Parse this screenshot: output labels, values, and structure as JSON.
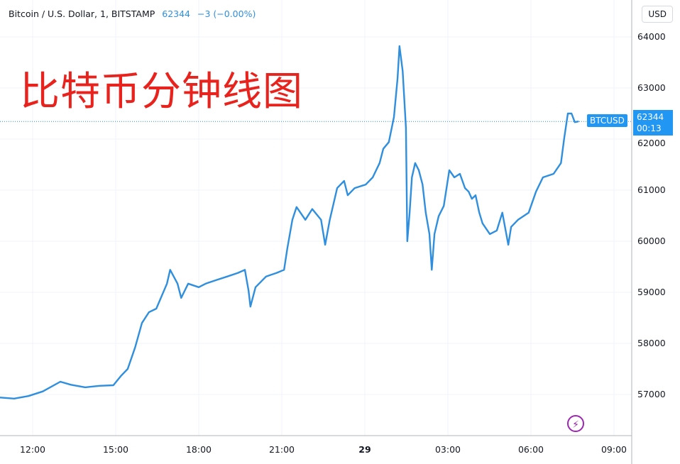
{
  "header": {
    "symbol_desc": "Bitcoin / U.S. Dollar, 1, BITSTAMP",
    "last": "62344",
    "change": "−3 (−0.00%)",
    "currency_button": "USD"
  },
  "overlay_title": "比特币分钟线图",
  "price_label": {
    "symbol": "BTCUSD",
    "price": "62344",
    "countdown": "00:13"
  },
  "icons": {
    "lightning": "lightning-icon"
  },
  "colors": {
    "line": "#2f8fde",
    "tag": "#2196f3",
    "title": "#e8231d",
    "grid": "#f0f3fa"
  },
  "chart_data": {
    "type": "line",
    "title": "",
    "xlabel": "",
    "ylabel": "",
    "x_tick_labels": [
      "12:00",
      "15:00",
      "18:00",
      "21:00",
      "29",
      "03:00",
      "06:00",
      "09:00"
    ],
    "y_tick_labels": [
      "57000",
      "58000",
      "59000",
      "60000",
      "61000",
      "62000",
      "63000",
      "64000"
    ],
    "ylim": [
      56500,
      64500
    ],
    "xlim": [
      "28 10:49",
      "29 09:30"
    ],
    "grid": true,
    "last_price_line": 62344,
    "series": [
      {
        "x": [
          "28 10:49",
          "28 11:20",
          "28 11:51",
          "28 12:22",
          "28 13:00",
          "28 13:23",
          "28 13:54",
          "28 14:25",
          "28 14:55",
          "28 15:11",
          "28 15:26",
          "28 15:42",
          "28 15:57",
          "28 16:12",
          "28 16:28",
          "28 16:51",
          "28 16:58",
          "28 17:14",
          "28 17:22",
          "28 17:37",
          "28 18:00",
          "28 18:15",
          "28 18:38",
          "28 19:02",
          "28 19:25",
          "28 19:40",
          "28 19:48",
          "28 19:52",
          "28 20:03",
          "28 20:26",
          "28 20:49",
          "28 21:05",
          "28 21:12",
          "28 21:23",
          "28 21:32",
          "28 21:51",
          "28 22:06",
          "28 22:25",
          "28 22:34",
          "28 22:44",
          "28 23:00",
          "28 23:15",
          "28 23:23",
          "28 23:38",
          "29 00:02",
          "29 00:17",
          "29 00:32",
          "29 00:40",
          "29 00:52",
          "29 01:03",
          "29 01:11",
          "29 01:15",
          "29 01:22",
          "29 01:29",
          "29 01:32",
          "29 01:37",
          "29 01:42",
          "29 01:49",
          "29 01:57",
          "29 02:05",
          "29 02:12",
          "29 02:20",
          "29 02:25",
          "29 02:31",
          "29 02:40",
          "29 02:51",
          "29 03:03",
          "29 03:14",
          "29 03:26",
          "29 03:37",
          "29 03:45",
          "29 03:52",
          "29 04:00",
          "29 04:08",
          "29 04:15",
          "29 04:31",
          "29 04:46",
          "29 04:58",
          "29 05:11",
          "29 05:17",
          "29 05:32",
          "29 05:55",
          "29 06:11",
          "29 06:26",
          "29 06:49",
          "29 07:05",
          "29 07:12",
          "29 07:20",
          "29 07:28",
          "29 07:35",
          "29 07:43"
        ],
        "y": [
          56940,
          56920,
          56970,
          57060,
          57250,
          57190,
          57140,
          57170,
          57180,
          57360,
          57500,
          57920,
          58400,
          58610,
          58680,
          59170,
          59440,
          59170,
          58890,
          59170,
          59100,
          59170,
          59240,
          59310,
          59380,
          59440,
          59030,
          58720,
          59100,
          59310,
          59380,
          59440,
          59860,
          60420,
          60670,
          60420,
          60630,
          60420,
          59930,
          60420,
          61040,
          61180,
          60900,
          61040,
          61110,
          61250,
          61530,
          61810,
          61940,
          62430,
          63190,
          63820,
          63330,
          62220,
          60000,
          60560,
          61250,
          61530,
          61390,
          61110,
          60560,
          60140,
          59440,
          60140,
          60490,
          60690,
          61390,
          61250,
          61320,
          61040,
          60970,
          60830,
          60900,
          60560,
          60350,
          60140,
          60210,
          60560,
          59930,
          60280,
          60420,
          60560,
          60970,
          61250,
          61320,
          61530,
          62010,
          62500,
          62500,
          62330,
          62344
        ]
      }
    ]
  }
}
